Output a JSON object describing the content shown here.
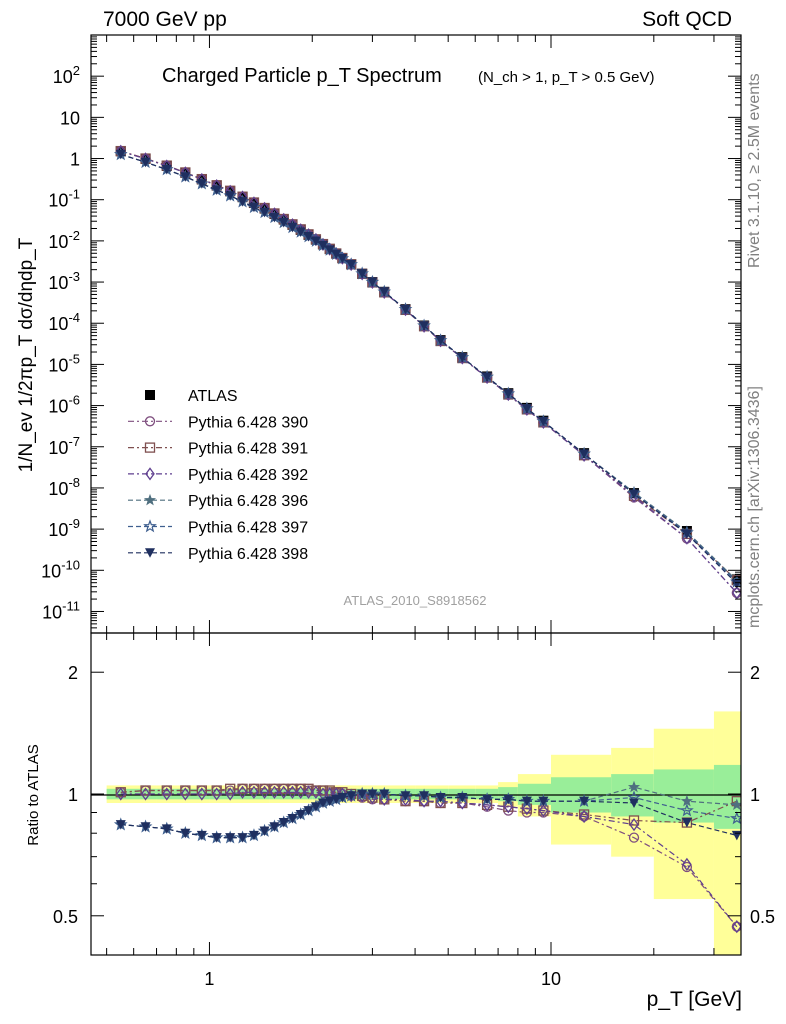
{
  "header": {
    "left": "7000 GeV pp",
    "right": "Soft QCD"
  },
  "side_labels": {
    "rivet": "Rivet 3.1.10, ≥ 2.5M events",
    "mcplots": "mcplots.cern.ch [arXiv:1306.3436]"
  },
  "chart_data": [
    {
      "type": "scatter",
      "title": "Charged Particle p_T Spectrum",
      "subtitle": "(N_ch > 1, p_T > 0.5 GeV)",
      "ylabel": "1/N_ev 1/2πp_T dσ/dηdp_T",
      "watermark": "ATLAS_2010_S8918562",
      "xscale": "log",
      "yscale": "log",
      "xlim": [
        0.45,
        36
      ],
      "ylim": [
        3e-12,
        1000
      ],
      "xticklabels": [
        "1",
        "10"
      ],
      "yticklabels": [
        "10^-11",
        "10^-10",
        "10^-9",
        "10^-8",
        "10^-7",
        "10^-6",
        "10^-5",
        "10^-4",
        "10^-3",
        "10^-2",
        "10^-1",
        "1",
        "10",
        "10^2"
      ],
      "legend_position": "left",
      "series": [
        {
          "name": "ATLAS",
          "color": "#000000",
          "x": [
            0.55,
            0.65,
            0.75,
            0.85,
            0.95,
            1.05,
            1.15,
            1.25,
            1.35,
            1.45,
            1.55,
            1.65,
            1.75,
            1.85,
            1.95,
            2.05,
            2.15,
            2.25,
            2.35,
            2.45,
            2.6,
            2.8,
            3.0,
            3.25,
            3.75,
            4.25,
            4.75,
            5.5,
            6.5,
            7.5,
            8.5,
            9.5,
            12.5,
            17.5,
            25,
            35
          ],
          "y": [
            1.5,
            0.98,
            0.66,
            0.45,
            0.31,
            0.22,
            0.16,
            0.115,
            0.083,
            0.061,
            0.045,
            0.033,
            0.0245,
            0.0185,
            0.014,
            0.0107,
            0.0082,
            0.0063,
            0.0049,
            0.0038,
            0.0027,
            0.0016,
            0.001,
            0.00058,
            0.00022,
            8.8e-05,
            3.9e-05,
            1.5e-05,
            5.1e-06,
            2e-06,
            8.8e-07,
            4.3e-07,
            7e-08,
            7.5e-09,
            9e-10,
            6e-11
          ]
        },
        {
          "name": "Pythia 6.428 390",
          "color": "#7f4f7f",
          "ratio": [
            1.01,
            1.02,
            1.02,
            1.02,
            1.02,
            1.02,
            1.02,
            1.03,
            1.03,
            1.03,
            1.03,
            1.03,
            1.03,
            1.03,
            1.02,
            1.02,
            1.02,
            1.01,
            1.01,
            1.0,
            0.99,
            0.98,
            0.97,
            0.97,
            0.96,
            0.96,
            0.95,
            0.95,
            0.93,
            0.91,
            0.9,
            0.9,
            0.88,
            0.78,
            0.66,
            0.47
          ]
        },
        {
          "name": "Pythia 6.428 391",
          "color": "#7f4f4f",
          "ratio": [
            1.01,
            1.02,
            1.02,
            1.02,
            1.02,
            1.02,
            1.03,
            1.03,
            1.03,
            1.03,
            1.03,
            1.03,
            1.03,
            1.03,
            1.03,
            1.02,
            1.02,
            1.02,
            1.01,
            1.01,
            1.0,
            0.99,
            0.98,
            0.97,
            0.96,
            0.96,
            0.95,
            0.95,
            0.94,
            0.93,
            0.92,
            0.91,
            0.89,
            0.86,
            0.85,
            0.96
          ]
        },
        {
          "name": "Pythia 6.428 392",
          "color": "#5f3f8f",
          "ratio": [
            1.0,
            1.0,
            1.0,
            1.0,
            1.0,
            1.0,
            1.0,
            1.01,
            1.01,
            1.01,
            1.01,
            1.01,
            1.01,
            1.01,
            1.01,
            1.01,
            1.0,
            1.0,
            1.0,
            1.0,
            0.99,
            0.99,
            0.98,
            0.97,
            0.97,
            0.96,
            0.96,
            0.95,
            0.94,
            0.93,
            0.92,
            0.91,
            0.88,
            0.84,
            0.67,
            0.47
          ]
        },
        {
          "name": "Pythia 6.428 396",
          "color": "#4f6f7f",
          "ratio": [
            0.84,
            0.83,
            0.82,
            0.8,
            0.79,
            0.78,
            0.78,
            0.78,
            0.79,
            0.81,
            0.83,
            0.85,
            0.87,
            0.89,
            0.91,
            0.93,
            0.95,
            0.96,
            0.97,
            0.98,
            0.99,
            1.0,
            1.0,
            1.0,
            0.99,
            0.99,
            0.98,
            0.98,
            0.97,
            0.97,
            0.96,
            0.96,
            0.96,
            1.04,
            0.96,
            0.94
          ]
        },
        {
          "name": "Pythia 6.428 397",
          "color": "#3f5f8f",
          "ratio": [
            0.84,
            0.83,
            0.82,
            0.8,
            0.79,
            0.78,
            0.78,
            0.78,
            0.79,
            0.81,
            0.83,
            0.85,
            0.87,
            0.89,
            0.91,
            0.93,
            0.95,
            0.96,
            0.97,
            0.98,
            0.99,
            1.0,
            1.0,
            1.0,
            0.99,
            0.99,
            0.98,
            0.98,
            0.97,
            0.97,
            0.96,
            0.96,
            0.96,
            0.98,
            0.91,
            0.87
          ]
        },
        {
          "name": "Pythia 6.428 398",
          "color": "#1f2f5f",
          "ratio": [
            0.84,
            0.83,
            0.82,
            0.8,
            0.79,
            0.78,
            0.78,
            0.78,
            0.79,
            0.81,
            0.83,
            0.85,
            0.87,
            0.89,
            0.91,
            0.93,
            0.95,
            0.96,
            0.97,
            0.98,
            0.99,
            1.0,
            1.0,
            1.0,
            0.99,
            0.99,
            0.98,
            0.98,
            0.97,
            0.97,
            0.96,
            0.96,
            0.96,
            0.95,
            0.85,
            0.79
          ]
        }
      ]
    },
    {
      "type": "scatter",
      "ylabel": "Ratio to ATLAS",
      "xlabel": "p_T  [GeV]",
      "xscale": "log",
      "yscale": "log",
      "xlim": [
        0.45,
        36
      ],
      "ylim": [
        0.4,
        2.5
      ],
      "yticklabels": [
        "0.5",
        "1",
        "2"
      ],
      "xticklabels": [
        "1",
        "10"
      ],
      "reference_line": 1,
      "uncertainty_bands": {
        "x_edges": [
          0.5,
          0.7,
          1.0,
          1.5,
          2.0,
          3.0,
          4.0,
          5.0,
          6.0,
          7.0,
          8.0,
          10.0,
          15.0,
          20.0,
          30.0,
          40.0
        ],
        "inner_half": [
          0.03,
          0.03,
          0.03,
          0.03,
          0.03,
          0.03,
          0.03,
          0.03,
          0.03,
          0.04,
          0.06,
          0.1,
          0.12,
          0.15,
          0.18
        ],
        "outer_half": [
          0.05,
          0.05,
          0.05,
          0.05,
          0.05,
          0.05,
          0.05,
          0.05,
          0.05,
          0.07,
          0.12,
          0.25,
          0.3,
          0.45,
          0.6
        ],
        "inner_color": "#99ee99",
        "outer_color": "#ffff99"
      }
    }
  ]
}
